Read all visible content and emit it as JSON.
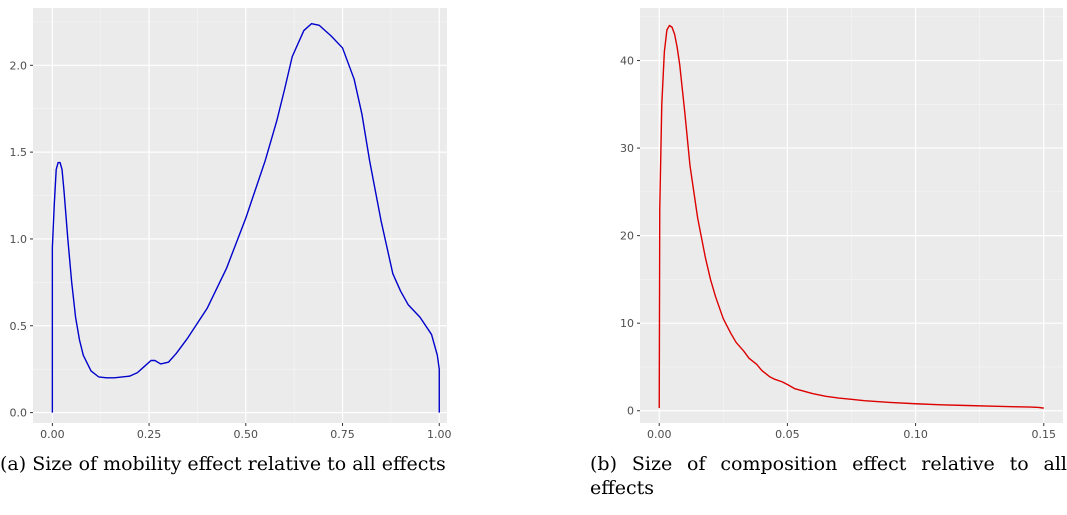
{
  "captions": {
    "a": "(a) Size of mobility effect relative to all effects",
    "b": "(b) Size of composition effect relative to all effects"
  },
  "colors": {
    "panel_bg": "#ebebeb",
    "grid": "#ffffff",
    "line_a": "#0000cc",
    "line_b": "#dd0000",
    "tick_text": "#4d4d4d"
  },
  "chart_data": [
    {
      "type": "line",
      "title": "",
      "xlabel": "",
      "ylabel": "",
      "xlim": [
        -0.05,
        1.02
      ],
      "ylim": [
        -0.06,
        2.33
      ],
      "x_ticks": [
        0.0,
        0.25,
        0.5,
        0.75,
        1.0
      ],
      "x_tick_labels": [
        "0.00",
        "0.25",
        "0.50",
        "0.75",
        "1.00"
      ],
      "y_ticks": [
        0.0,
        0.5,
        1.0,
        1.5,
        2.0
      ],
      "y_tick_labels": [
        "0.0",
        "0.5",
        "1.0",
        "1.5",
        "2.0"
      ],
      "grid": true,
      "series": [
        {
          "color": "#0000cc",
          "x": [
            0.0,
            0.0,
            0.005,
            0.01,
            0.015,
            0.02,
            0.025,
            0.03,
            0.04,
            0.05,
            0.06,
            0.07,
            0.08,
            0.1,
            0.12,
            0.14,
            0.16,
            0.2,
            0.22,
            0.24,
            0.255,
            0.265,
            0.28,
            0.3,
            0.32,
            0.35,
            0.4,
            0.45,
            0.5,
            0.55,
            0.58,
            0.6,
            0.62,
            0.65,
            0.67,
            0.69,
            0.7,
            0.72,
            0.75,
            0.78,
            0.8,
            0.82,
            0.85,
            0.88,
            0.9,
            0.92,
            0.95,
            0.98,
            0.995,
            1.0,
            1.0
          ],
          "y": [
            0.0,
            0.95,
            1.2,
            1.4,
            1.44,
            1.44,
            1.4,
            1.28,
            1.0,
            0.75,
            0.55,
            0.42,
            0.33,
            0.24,
            0.205,
            0.2,
            0.2,
            0.21,
            0.23,
            0.27,
            0.3,
            0.3,
            0.28,
            0.29,
            0.34,
            0.43,
            0.6,
            0.83,
            1.12,
            1.45,
            1.68,
            1.86,
            2.05,
            2.2,
            2.24,
            2.23,
            2.21,
            2.17,
            2.1,
            1.92,
            1.72,
            1.45,
            1.1,
            0.8,
            0.7,
            0.62,
            0.55,
            0.45,
            0.33,
            0.25,
            0.0
          ]
        }
      ]
    },
    {
      "type": "line",
      "title": "",
      "xlabel": "",
      "ylabel": "",
      "xlim": [
        -0.0075,
        0.1575
      ],
      "ylim": [
        -1.4,
        46.0
      ],
      "x_ticks": [
        0.0,
        0.05,
        0.1,
        0.15
      ],
      "x_tick_labels": [
        "0.00",
        "0.05",
        "0.10",
        "0.15"
      ],
      "y_ticks": [
        0,
        10,
        20,
        30,
        40
      ],
      "y_tick_labels": [
        "0",
        "10",
        "20",
        "30",
        "40"
      ],
      "grid": true,
      "series": [
        {
          "color": "#dd0000",
          "x": [
            0.0,
            0.0002,
            0.001,
            0.002,
            0.003,
            0.004,
            0.005,
            0.006,
            0.007,
            0.008,
            0.01,
            0.012,
            0.015,
            0.018,
            0.02,
            0.022,
            0.025,
            0.028,
            0.03,
            0.033,
            0.035,
            0.038,
            0.04,
            0.043,
            0.045,
            0.048,
            0.05,
            0.053,
            0.055,
            0.058,
            0.06,
            0.065,
            0.07,
            0.075,
            0.08,
            0.085,
            0.09,
            0.1,
            0.11,
            0.12,
            0.13,
            0.14,
            0.145,
            0.148,
            0.15
          ],
          "y": [
            0.3,
            23.0,
            35.0,
            41.0,
            43.5,
            44.0,
            43.8,
            43.0,
            41.5,
            39.5,
            34.0,
            28.0,
            22.0,
            17.5,
            15.0,
            13.0,
            10.5,
            8.8,
            7.8,
            6.8,
            6.0,
            5.3,
            4.6,
            3.9,
            3.6,
            3.3,
            3.0,
            2.5,
            2.35,
            2.1,
            1.95,
            1.65,
            1.45,
            1.3,
            1.15,
            1.05,
            0.95,
            0.8,
            0.68,
            0.6,
            0.52,
            0.45,
            0.42,
            0.38,
            0.3
          ]
        }
      ]
    }
  ]
}
